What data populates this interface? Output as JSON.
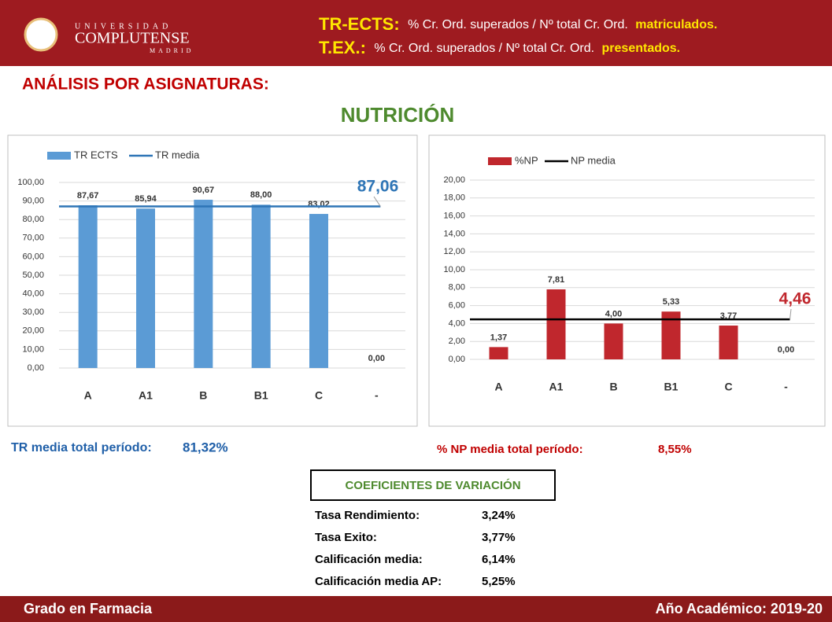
{
  "header": {
    "logo": {
      "top": "UNIVERSIDAD",
      "main": "COMPLUTENSE",
      "bottom": "MADRID"
    },
    "line1": {
      "term": "TR-ECTS:",
      "text": "% Cr. Ord. superados / Nº total Cr. Ord.",
      "highlight": "matriculados."
    },
    "line2": {
      "term": "T.EX.:",
      "text": "% Cr. Ord. superados / Nº total Cr. Ord.",
      "highlight": "presentados."
    }
  },
  "section_title": "ANÁLISIS POR ASIGNATURAS:",
  "subject": "NUTRICIÓN",
  "chart_data": [
    {
      "type": "bar",
      "categories": [
        "A",
        "A1",
        "B",
        "B1",
        "C",
        "-"
      ],
      "series": [
        {
          "name": "TR ECTS",
          "color": "#5b9bd5",
          "values": [
            87.67,
            85.94,
            90.67,
            88.0,
            83.02,
            0.0
          ],
          "value_labels": [
            "87,67",
            "85,94",
            "90,67",
            "88,00",
            "83,02",
            "0,00"
          ]
        }
      ],
      "mean": {
        "name": "TR media",
        "color": "#2e75b6",
        "value": 87.06,
        "label": "87,06"
      },
      "ylim": [
        0,
        100
      ],
      "yticks": [
        {
          "value": 0,
          "label": "0,00"
        },
        {
          "value": 10,
          "label": "10,00"
        },
        {
          "value": 20,
          "label": "20,00"
        },
        {
          "value": 30,
          "label": "30,00"
        },
        {
          "value": 40,
          "label": "40,00"
        },
        {
          "value": 50,
          "label": "50,00"
        },
        {
          "value": 60,
          "label": "60,00"
        },
        {
          "value": 70,
          "label": "70,00"
        },
        {
          "value": 80,
          "label": "80,00"
        },
        {
          "value": 90,
          "label": "90,00"
        },
        {
          "value": 100,
          "label": "100,00"
        }
      ],
      "grid": true
    },
    {
      "type": "bar",
      "categories": [
        "A",
        "A1",
        "B",
        "B1",
        "C",
        "-"
      ],
      "series": [
        {
          "name": "%NP",
          "color": "#c0272d",
          "values": [
            1.37,
            7.81,
            4.0,
            5.33,
            3.77,
            0.0
          ],
          "value_labels": [
            "1,37",
            "7,81",
            "4,00",
            "5,33",
            "3,77",
            "0,00"
          ]
        }
      ],
      "mean": {
        "name": "NP media",
        "color": "#000000",
        "value": 4.46,
        "label": "4,46"
      },
      "ylim": [
        0,
        20
      ],
      "yticks": [
        {
          "value": 0,
          "label": "0,00"
        },
        {
          "value": 2,
          "label": "2,00"
        },
        {
          "value": 4,
          "label": "4,00"
        },
        {
          "value": 6,
          "label": "6,00"
        },
        {
          "value": 8,
          "label": "8,00"
        },
        {
          "value": 10,
          "label": "10,00"
        },
        {
          "value": 12,
          "label": "12,00"
        },
        {
          "value": 14,
          "label": "14,00"
        },
        {
          "value": 16,
          "label": "16,00"
        },
        {
          "value": 18,
          "label": "18,00"
        },
        {
          "value": 20,
          "label": "20,00"
        }
      ],
      "grid": true
    }
  ],
  "summary": {
    "tr": {
      "label": "TR media total período:",
      "value": "81,32%"
    },
    "np": {
      "label": "% NP media total período:",
      "value": "8,55%"
    }
  },
  "table": {
    "title": "COEFICIENTES DE VARIACIÓN",
    "rows": [
      [
        "Tasa Rendimiento:",
        "3,24%"
      ],
      [
        "Tasa Exito:",
        "3,77%"
      ],
      [
        "Calificación media:",
        "6,14%"
      ],
      [
        "Calificación media AP:",
        "5,25%"
      ]
    ]
  },
  "footer": {
    "left": "Grado en Farmacia",
    "right": "Año Académico: 2019-20"
  }
}
